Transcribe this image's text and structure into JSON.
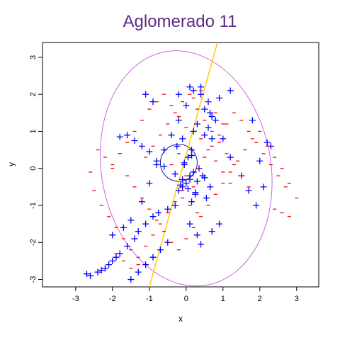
{
  "chart_data": {
    "type": "scatter",
    "title": "Aglomerado 11",
    "xlabel": "x",
    "ylabel": "y",
    "xlim": [
      -3.9,
      3.6
    ],
    "ylim": [
      -3.2,
      3.4
    ],
    "x_ticks": [
      -3,
      -2,
      -1,
      0,
      1,
      2,
      3
    ],
    "y_ticks": [
      -3,
      -2,
      -1,
      0,
      1,
      2,
      3
    ],
    "grid": false,
    "colors": {
      "title": "#5b2a86",
      "plus_points": "#0000ff",
      "minus_points": "#ff0000",
      "ellipse": "#cc66dd",
      "circle": "#1a1a99",
      "line": "#ffcc00"
    },
    "series": [
      {
        "name": "+",
        "marker": "plus",
        "x": [
          -0.2,
          0.1,
          0.4,
          0.9,
          1.2,
          0.5,
          0.7,
          -0.9,
          -1.1,
          0.3,
          0.2,
          0.5,
          0.6,
          0.7,
          0.65,
          -0.1,
          -0.25,
          0.15,
          0.05,
          -0.05,
          0.35,
          0.45,
          0.1,
          0.0,
          -0.1,
          -0.2,
          0.25,
          0.55,
          0.65,
          0.15,
          -0.3,
          -0.5,
          -0.75,
          -0.9,
          -1.1,
          -1.3,
          -1.4,
          -1.6,
          -1.8,
          -1.9,
          -2.0,
          -2.1,
          -2.2,
          -2.3,
          -2.4,
          -2.6,
          -2.7,
          -2.0,
          -1.5,
          -1.2,
          -1.0,
          -0.8,
          -0.6,
          -0.4,
          -0.2,
          0.0,
          0.2,
          0.4,
          0.6,
          0.8,
          1.0,
          1.2,
          1.5,
          1.7,
          1.9,
          2.1,
          2.3,
          2.2,
          2.0,
          1.8,
          0.2,
          0.1,
          -0.1,
          0.3,
          0.5,
          -0.3,
          -0.6,
          -0.8,
          -1.0,
          -1.2,
          -1.4,
          -1.6,
          -1.8,
          0.9,
          0.7,
          -0.5,
          -0.7,
          -0.9,
          -1.1,
          -1.3,
          -1.5,
          -1.7,
          0.1,
          0.3,
          0.4,
          0.05,
          -0.15,
          0.25,
          -0.05,
          0.15
        ],
        "y": [
          2.0,
          2.2,
          2.0,
          1.9,
          2.1,
          1.6,
          1.4,
          1.8,
          2.0,
          1.2,
          1.0,
          0.9,
          1.1,
          0.8,
          1.5,
          0.8,
          0.6,
          0.5,
          0.3,
          0.1,
          0.0,
          -0.2,
          -0.3,
          -0.4,
          -0.5,
          -0.6,
          -0.7,
          -0.8,
          -0.5,
          -0.9,
          -1.0,
          -1.1,
          -1.2,
          -1.3,
          -1.5,
          -1.7,
          -1.9,
          -2.1,
          -2.3,
          -2.4,
          -2.5,
          -2.6,
          -2.7,
          -2.75,
          -2.8,
          -2.9,
          -2.85,
          -1.8,
          -1.4,
          -0.9,
          -0.4,
          0.1,
          0.5,
          0.9,
          1.3,
          1.7,
          2.1,
          2.2,
          1.8,
          1.3,
          0.8,
          0.3,
          -0.2,
          -0.6,
          -1.0,
          -0.5,
          0.6,
          0.7,
          0.2,
          1.3,
          -0.1,
          -0.2,
          -0.3,
          -0.35,
          -0.25,
          -0.15,
          0.05,
          0.2,
          0.45,
          0.6,
          0.75,
          0.9,
          0.85,
          -1.5,
          -1.7,
          -2.0,
          -2.2,
          -2.4,
          -2.6,
          -2.8,
          -3.0,
          -1.6,
          -1.5,
          -1.8,
          -2.05,
          -0.55,
          -0.45,
          -0.65,
          0.15,
          0.35
        ]
      },
      {
        "name": "-",
        "marker": "minus",
        "x": [
          -2.6,
          -2.4,
          -2.2,
          -2.0,
          -1.8,
          -1.6,
          -1.4,
          -1.2,
          -1.0,
          -0.8,
          -0.6,
          -0.4,
          -0.2,
          0.0,
          0.2,
          0.4,
          0.6,
          0.8,
          1.0,
          1.2,
          1.4,
          1.6,
          1.8,
          2.0,
          2.2,
          2.4,
          2.6,
          2.8,
          3.0,
          -2.5,
          -2.3,
          -2.1,
          -1.9,
          -1.7,
          -1.5,
          -1.3,
          -1.1,
          -0.9,
          -0.7,
          -0.5,
          -0.3,
          -0.1,
          0.1,
          0.3,
          0.5,
          0.7,
          0.9,
          1.1,
          1.3,
          1.5,
          1.7,
          1.9,
          2.1,
          2.3,
          2.5,
          2.7,
          -1.0,
          -0.8,
          -0.6,
          -0.4,
          -0.2,
          0.0,
          0.2,
          0.4,
          0.6,
          0.8,
          1.0,
          -1.2,
          -1.4,
          -1.6,
          -1.8,
          -2.0,
          -1.1,
          -0.9,
          -0.7,
          -0.5,
          -0.3,
          -0.1,
          0.1,
          0.3,
          0.5,
          0.7,
          0.9,
          1.1,
          1.3,
          1.5,
          1.7,
          0.4,
          0.6,
          0.8,
          1.0,
          1.2,
          -0.2,
          -0.4,
          0.0,
          0.2,
          -1.9,
          -1.7,
          -1.5,
          -1.3,
          -0.1,
          0.1,
          0.3,
          2.4,
          2.6,
          2.8
        ],
        "y": [
          -0.1,
          0.5,
          0.3,
          0.0,
          0.4,
          -0.2,
          -0.5,
          -0.8,
          -1.1,
          -1.4,
          -1.7,
          -2.0,
          -2.2,
          -1.9,
          -1.6,
          -1.3,
          -1.0,
          -0.7,
          -0.4,
          -0.1,
          0.2,
          0.5,
          0.8,
          1.0,
          0.6,
          0.3,
          0.0,
          -0.4,
          -0.8,
          -0.6,
          -1.0,
          -1.3,
          -1.6,
          -1.9,
          -2.2,
          -2.4,
          -2.1,
          -1.8,
          -1.5,
          -1.2,
          -0.9,
          -0.6,
          -0.3,
          0.0,
          0.3,
          0.6,
          0.9,
          1.2,
          1.5,
          1.3,
          1.0,
          0.7,
          0.4,
          0.1,
          -0.2,
          -0.5,
          1.6,
          1.8,
          2.0,
          1.7,
          1.4,
          1.1,
          1.9,
          2.1,
          1.8,
          1.5,
          1.2,
          1.3,
          1.0,
          0.7,
          0.4,
          0.1,
          0.3,
          0.6,
          0.9,
          1.2,
          1.5,
          1.8,
          2.0,
          1.6,
          1.3,
          1.0,
          0.7,
          0.4,
          0.1,
          -0.2,
          -0.5,
          0.8,
          0.5,
          0.2,
          -0.1,
          -0.4,
          0.4,
          0.1,
          -0.2,
          -0.5,
          -2.3,
          -2.5,
          -2.7,
          -2.6,
          -0.8,
          -1.0,
          -1.2,
          -1.1,
          -1.2,
          -1.3
        ]
      }
    ],
    "overlays": {
      "ellipse": {
        "cx": 0.0,
        "cy": 0.0,
        "rx": 2.3,
        "ry": 3.2,
        "angle_deg": -10
      },
      "circle": {
        "cx": -0.2,
        "cy": 0.15,
        "r": 0.5
      },
      "line": {
        "x1": -1.0,
        "y1": -3.2,
        "x2": 0.85,
        "y2": 3.4
      }
    }
  }
}
